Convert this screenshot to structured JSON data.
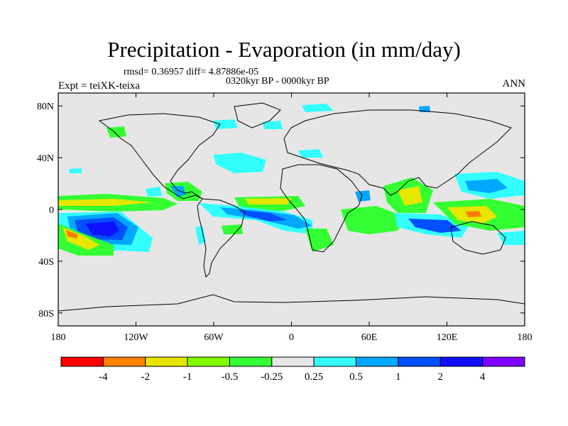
{
  "header": {
    "title": "Precipitation - Evaporation (in mm/day)",
    "stats": "rmsd= 0.36957 diff= 4.87886e-05",
    "period": "0320kyr BP - 0000kyr BP",
    "experiment": "Expt = teiXK-teixa",
    "season": "ANN"
  },
  "map": {
    "lon_ticks": [
      "180",
      "120W",
      "60W",
      "0",
      "60E",
      "120E",
      "180"
    ],
    "lat_ticks": [
      "80N",
      "40N",
      "0",
      "40S",
      "80S"
    ],
    "background_color": "#e6e6e6",
    "coastline_color": "#000000"
  },
  "colorbar": {
    "colors": [
      "#ff0000",
      "#ff8000",
      "#e6e600",
      "#80ff00",
      "#33ff33",
      "#e6e6e6",
      "#33ffff",
      "#00a8ff",
      "#0050ff",
      "#1010ff",
      "#8000ff"
    ],
    "labels": [
      "-4",
      "-2",
      "-1",
      "-0.5",
      "-0.25",
      "0.25",
      "0.5",
      "1",
      "2",
      "4"
    ]
  }
}
